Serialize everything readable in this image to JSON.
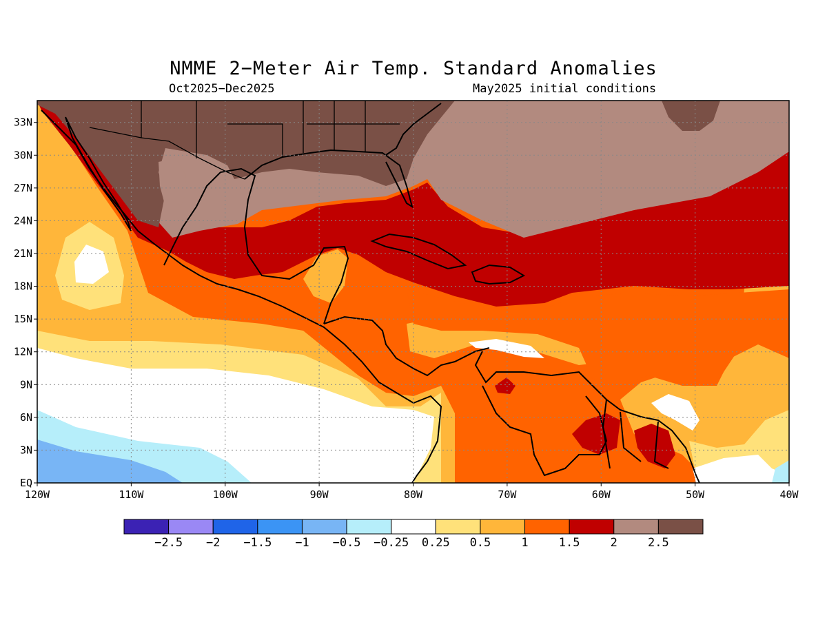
{
  "title": "NMME 2−Meter Air Temp. Standard Anomalies",
  "subtitle_left": "Oct2025−Dec2025",
  "subtitle_right": "May2025 initial conditions",
  "map": {
    "lon_range": [
      -120,
      -40
    ],
    "lat_range": [
      0,
      35
    ],
    "lat_ticks": [
      {
        "value": 33,
        "label": "33N"
      },
      {
        "value": 30,
        "label": "30N"
      },
      {
        "value": 27,
        "label": "27N"
      },
      {
        "value": 24,
        "label": "24N"
      },
      {
        "value": 21,
        "label": "21N"
      },
      {
        "value": 18,
        "label": "18N"
      },
      {
        "value": 15,
        "label": "15N"
      },
      {
        "value": 12,
        "label": "12N"
      },
      {
        "value": 9,
        "label": "9N"
      },
      {
        "value": 6,
        "label": "6N"
      },
      {
        "value": 3,
        "label": "3N"
      },
      {
        "value": 0,
        "label": "EQ"
      }
    ],
    "lon_ticks": [
      {
        "value": -120,
        "label": "120W"
      },
      {
        "value": -110,
        "label": "110W"
      },
      {
        "value": -100,
        "label": "100W"
      },
      {
        "value": -90,
        "label": "90W"
      },
      {
        "value": -80,
        "label": "80W"
      },
      {
        "value": -70,
        "label": "70W"
      },
      {
        "value": -60,
        "label": "60W"
      },
      {
        "value": -50,
        "label": "50W"
      },
      {
        "value": -40,
        "label": "40W"
      }
    ],
    "grid": true
  },
  "colorbar": {
    "colors": [
      "#3b22b4",
      "#9a88f5",
      "#1f64e8",
      "#3b94f5",
      "#78b5f5",
      "#b6eefa",
      "#ffffff",
      "#ffe17a",
      "#ffb63a",
      "#ff6300",
      "#c00000",
      "#b28a7f",
      "#7a5046"
    ],
    "labels": [
      "−2.5",
      "−2",
      "−1.5",
      "−1",
      "−0.5",
      "−0.25",
      "0.25",
      "0.5",
      "1",
      "1.5",
      "2",
      "2.5"
    ]
  },
  "colors": {
    "very_high": "#7a5046",
    "high": "#b28a7f",
    "red": "#c00000",
    "orange": "#ff6300",
    "lightorange": "#ffb63a",
    "yellow": "#ffe17a",
    "white": "#ffffff",
    "lightblue": "#b6eefa",
    "blue": "#78b5f5"
  }
}
